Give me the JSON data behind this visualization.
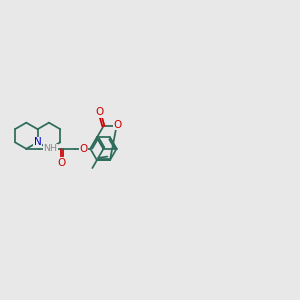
{
  "bg": "#e8e8e8",
  "bc": "#2d6b5a",
  "nc": "#0000cc",
  "oc": "#cc0000",
  "hc": "#888888",
  "figsize": [
    3.0,
    3.0
  ],
  "dpi": 100,
  "xlim": [
    -1.0,
    11.5
  ],
  "ylim": [
    1.5,
    8.5
  ]
}
